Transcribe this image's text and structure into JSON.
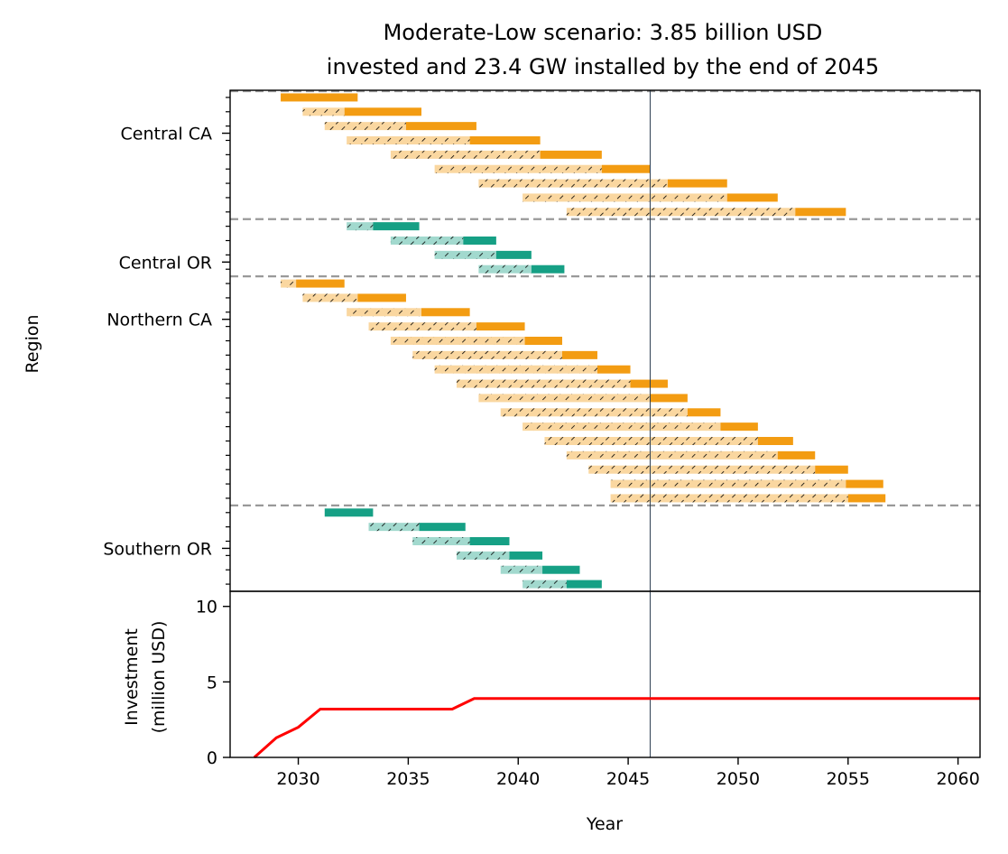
{
  "chart_data": [
    {
      "type": "gantt",
      "title_lines": [
        "Moderate-Low scenario: 3.85 billion USD",
        "invested and 23.4 GW installed by the end of 2045"
      ],
      "ylabel": "Region",
      "xlim": [
        2026.9,
        2061
      ],
      "reference_year": 2046.0,
      "colors": {
        "CA": "#f39c12",
        "CA_light": "#fad7a0",
        "OR": "#16a085",
        "OR_light": "#a2d9ce",
        "separator": "#999999",
        "reference_line": "#2c3e50"
      },
      "region_labels": [
        {
          "name": "Central CA",
          "row": 2.5
        },
        {
          "name": "Central OR",
          "row": 11.5
        },
        {
          "name": "Northern CA",
          "row": 15.5
        },
        {
          "name": "Southern OR",
          "row": 31.5
        }
      ],
      "separators": [
        8.5,
        12.5,
        28.5
      ],
      "bars": [
        {
          "region": "CA",
          "build_start": null,
          "build_end": 2029.2,
          "op_end": 2032.7
        },
        {
          "region": "CA",
          "build_start": 2030.2,
          "build_end": 2032.1,
          "op_end": 2035.6
        },
        {
          "region": "CA",
          "build_start": 2031.2,
          "build_end": 2034.9,
          "op_end": 2038.1
        },
        {
          "region": "CA",
          "build_start": 2032.2,
          "build_end": 2037.8,
          "op_end": 2041.0
        },
        {
          "region": "CA",
          "build_start": 2034.2,
          "build_end": 2041.0,
          "op_end": 2043.8
        },
        {
          "region": "CA",
          "build_start": 2036.2,
          "build_end": 2043.8,
          "op_end": 2046.0
        },
        {
          "region": "CA",
          "build_start": 2038.2,
          "build_end": 2046.8,
          "op_end": 2049.5
        },
        {
          "region": "CA",
          "build_start": 2040.2,
          "build_end": 2049.5,
          "op_end": 2051.8
        },
        {
          "region": "CA",
          "build_start": 2042.2,
          "build_end": 2052.6,
          "op_end": 2054.9
        },
        {
          "region": "OR",
          "build_start": 2032.2,
          "build_end": 2033.4,
          "op_end": 2035.5
        },
        {
          "region": "OR",
          "build_start": 2034.2,
          "build_end": 2037.5,
          "op_end": 2039.0
        },
        {
          "region": "OR",
          "build_start": 2036.2,
          "build_end": 2039.0,
          "op_end": 2040.6
        },
        {
          "region": "OR",
          "build_start": 2038.2,
          "build_end": 2040.6,
          "op_end": 2042.1
        },
        {
          "region": "CA",
          "build_start": 2029.2,
          "build_end": 2029.9,
          "op_end": 2032.1
        },
        {
          "region": "CA",
          "build_start": 2030.2,
          "build_end": 2032.7,
          "op_end": 2034.9
        },
        {
          "region": "CA",
          "build_start": 2032.2,
          "build_end": 2035.6,
          "op_end": 2037.8
        },
        {
          "region": "CA",
          "build_start": 2033.2,
          "build_end": 2038.1,
          "op_end": 2040.3
        },
        {
          "region": "CA",
          "build_start": 2034.2,
          "build_end": 2040.3,
          "op_end": 2042.0
        },
        {
          "region": "CA",
          "build_start": 2035.2,
          "build_end": 2042.0,
          "op_end": 2043.6
        },
        {
          "region": "CA",
          "build_start": 2036.2,
          "build_end": 2043.6,
          "op_end": 2045.1
        },
        {
          "region": "CA",
          "build_start": 2037.2,
          "build_end": 2045.1,
          "op_end": 2046.8
        },
        {
          "region": "CA",
          "build_start": 2038.2,
          "build_end": 2046.0,
          "op_end": 2047.7
        },
        {
          "region": "CA",
          "build_start": 2039.2,
          "build_end": 2047.7,
          "op_end": 2049.2
        },
        {
          "region": "CA",
          "build_start": 2040.2,
          "build_end": 2049.2,
          "op_end": 2050.9
        },
        {
          "region": "CA",
          "build_start": 2041.2,
          "build_end": 2050.9,
          "op_end": 2052.5
        },
        {
          "region": "CA",
          "build_start": 2042.2,
          "build_end": 2051.8,
          "op_end": 2053.5
        },
        {
          "region": "CA",
          "build_start": 2043.2,
          "build_end": 2053.5,
          "op_end": 2055.0
        },
        {
          "region": "CA",
          "build_start": 2044.2,
          "build_end": 2054.9,
          "op_end": 2056.6
        },
        {
          "region": "CA",
          "build_start": 2044.2,
          "build_end": 2055.0,
          "op_end": 2056.7
        },
        {
          "region": "OR",
          "build_start": null,
          "build_end": 2031.2,
          "op_end": 2033.4
        },
        {
          "region": "OR",
          "build_start": 2033.2,
          "build_end": 2035.5,
          "op_end": 2037.6
        },
        {
          "region": "OR",
          "build_start": 2035.2,
          "build_end": 2037.8,
          "op_end": 2039.6
        },
        {
          "region": "OR",
          "build_start": 2037.2,
          "build_end": 2039.6,
          "op_end": 2041.1
        },
        {
          "region": "OR",
          "build_start": 2039.2,
          "build_end": 2041.1,
          "op_end": 2042.8
        },
        {
          "region": "OR",
          "build_start": 2040.2,
          "build_end": 2042.2,
          "op_end": 2043.8
        }
      ]
    },
    {
      "type": "line",
      "xlabel": "Year",
      "ylabel_lines": [
        "Investment",
        "(million USD)"
      ],
      "xlim": [
        2026.9,
        2061
      ],
      "ylim": [
        0,
        11
      ],
      "xticks": [
        2030,
        2035,
        2040,
        2045,
        2050,
        2055,
        2060
      ],
      "yticks": [
        0,
        5,
        10
      ],
      "color": "#ff0000",
      "x": [
        2028,
        2029,
        2030,
        2031,
        2037,
        2038,
        2061
      ],
      "y": [
        0,
        1.3,
        2.0,
        3.2,
        3.2,
        3.9,
        3.9
      ]
    }
  ]
}
